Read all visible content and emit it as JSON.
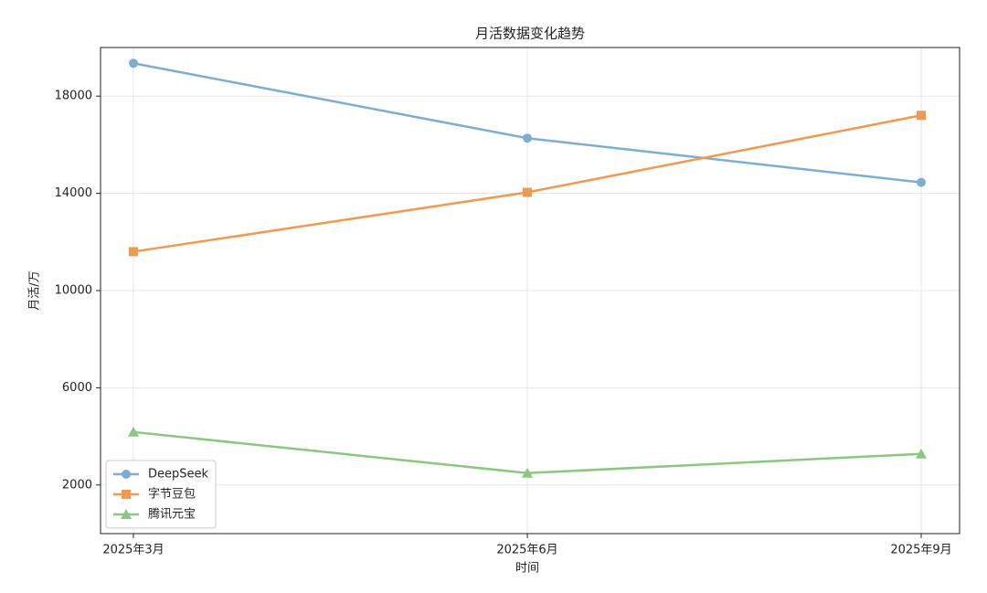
{
  "chart_data": {
    "type": "line",
    "title": "月活数据变化趋势",
    "x_label": "时间",
    "y_label": "月活/万",
    "categories": [
      "2025年3月",
      "2025年6月",
      "2025年9月"
    ],
    "series": [
      {
        "name": "DeepSeek",
        "color": "#7fadd0",
        "marker": "circle",
        "values": [
          19350,
          16270,
          14450
        ]
      },
      {
        "name": "字节豆包",
        "color": "#ef9a50",
        "marker": "square",
        "values": [
          11600,
          14040,
          17210
        ]
      },
      {
        "name": "腾讯元宝",
        "color": "#8cc680",
        "marker": "triangle",
        "values": [
          4180,
          2490,
          3280
        ]
      }
    ],
    "ylim": [
      0,
      20000
    ],
    "yticks": [
      2000,
      6000,
      10000,
      14000,
      18000
    ],
    "grid": true,
    "legend": "lower left"
  }
}
